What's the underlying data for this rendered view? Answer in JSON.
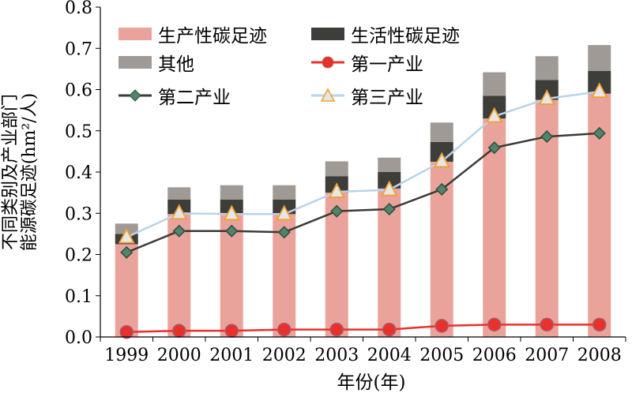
{
  "colors": {
    "production": "#eaa39b",
    "living": "#3d3d3a",
    "other": "#a09a96",
    "primary": "#e8312b",
    "secondary": "#3a3a36",
    "secondary_marker": "#52836b",
    "tertiary": "#b9d3e8",
    "tertiary_marker": "#f0a030"
  },
  "chart_data": {
    "type": "bar",
    "stacked": true,
    "categories": [
      "1999",
      "2000",
      "2001",
      "2002",
      "2003",
      "2004",
      "2005",
      "2006",
      "2007",
      "2008"
    ],
    "series": [
      {
        "name": "生产性碳足迹",
        "kind": "bar",
        "values": [
          0.225,
          0.298,
          0.298,
          0.298,
          0.35,
          0.36,
          0.425,
          0.53,
          0.575,
          0.59
        ]
      },
      {
        "name": "生活性碳足迹",
        "kind": "bar",
        "values": [
          0.025,
          0.035,
          0.035,
          0.035,
          0.04,
          0.04,
          0.048,
          0.055,
          0.048,
          0.055
        ]
      },
      {
        "name": "其他",
        "kind": "bar",
        "values": [
          0.025,
          0.03,
          0.035,
          0.035,
          0.036,
          0.035,
          0.047,
          0.057,
          0.058,
          0.063
        ]
      },
      {
        "name": "第一产业",
        "kind": "line",
        "marker": "circle",
        "values": [
          0.012,
          0.015,
          0.015,
          0.018,
          0.018,
          0.018,
          0.027,
          0.03,
          0.03,
          0.03
        ]
      },
      {
        "name": "第二产业",
        "kind": "line",
        "marker": "diamond",
        "values": [
          0.205,
          0.257,
          0.257,
          0.254,
          0.305,
          0.31,
          0.358,
          0.459,
          0.486,
          0.494
        ]
      },
      {
        "name": "第三产业",
        "kind": "line",
        "marker": "triangle",
        "values": [
          0.242,
          0.3,
          0.298,
          0.298,
          0.352,
          0.357,
          0.426,
          0.535,
          0.578,
          0.595
        ]
      }
    ],
    "xlabel": "年份(年)",
    "ylabel_line1": "不同类别及产业部门",
    "ylabel_line2": "能源碳足迹(hm²/人)",
    "ylim": [
      0,
      0.8
    ],
    "yticks": [
      "0.0",
      "0.1",
      "0.2",
      "0.3",
      "0.4",
      "0.5",
      "0.6",
      "0.7",
      "0.8"
    ],
    "grid": false,
    "legend_position": "top"
  }
}
